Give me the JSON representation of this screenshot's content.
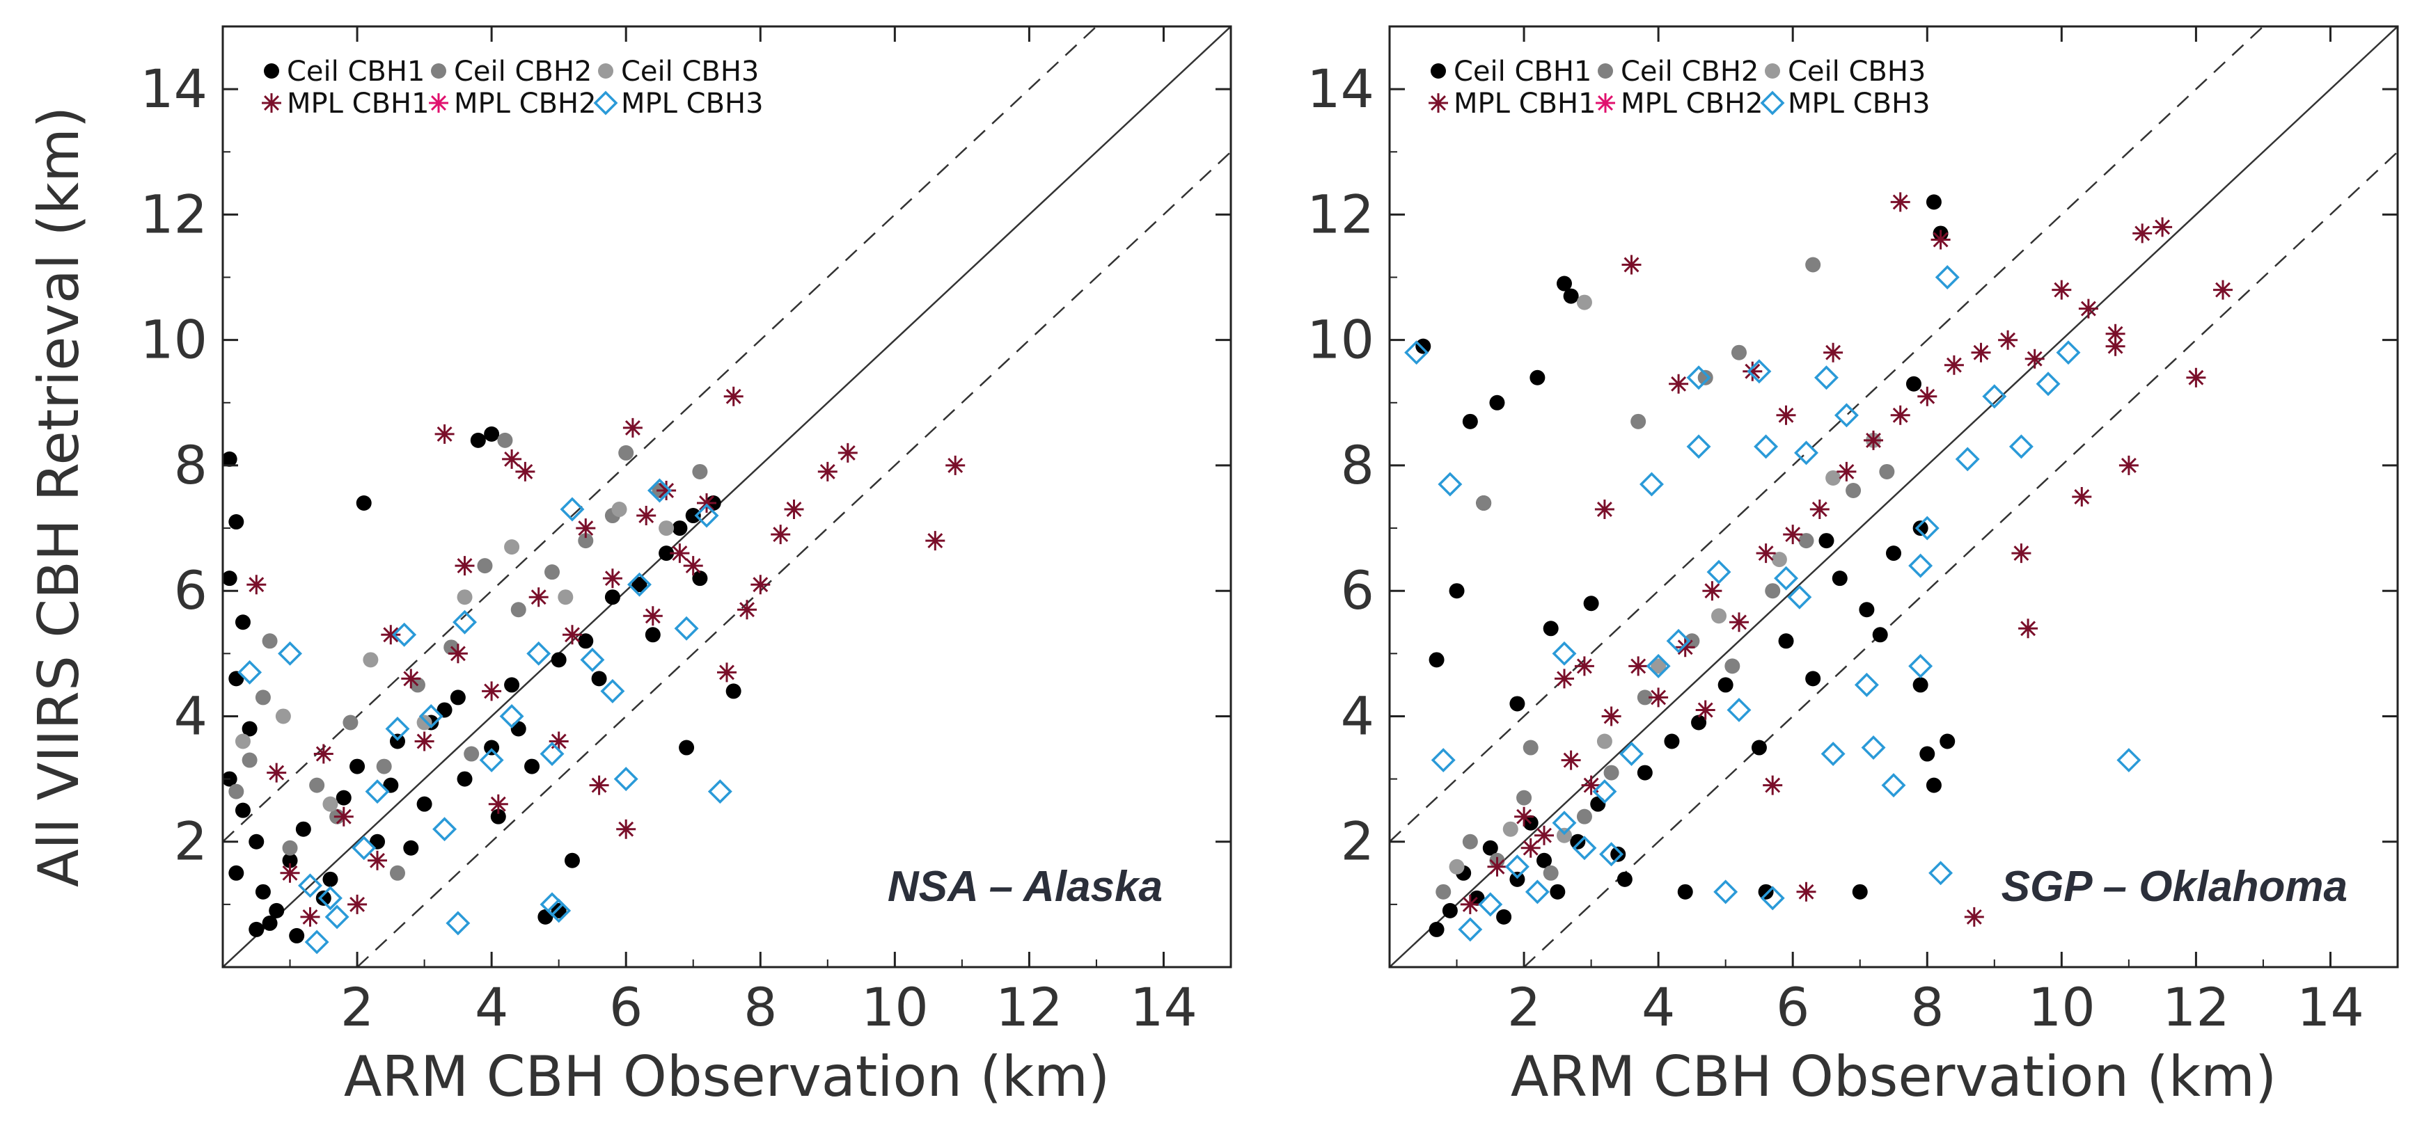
{
  "chart_data": [
    {
      "type": "scatter",
      "xlabel": "ARM CBH Observation (km)",
      "ylabel": "All VIIRS CBH Retrieval (km)",
      "xlim": [
        0,
        15
      ],
      "ylim": [
        0,
        15
      ],
      "xticks": [
        2,
        4,
        6,
        8,
        10,
        12,
        14
      ],
      "yticks": [
        2,
        4,
        6,
        8,
        10,
        12,
        14
      ],
      "annotation": "NSA – Alaska",
      "legend_position": "top-left",
      "reference_lines": {
        "one_to_one": "solid",
        "offset_km": 2,
        "offset_style": "dashed"
      },
      "colors": {
        "ceil_cbh1": "#000000",
        "ceil_cbh2": "#808080",
        "ceil_cbh3": "#9a9a9a",
        "mpl_cbh1": "#7a0f2a",
        "mpl_cbh2": "#e0116e",
        "mpl_cbh3": "#2a9ad8"
      },
      "legend": [
        {
          "label": "Ceil CBH1",
          "marker": "circle",
          "color": "#000000"
        },
        {
          "label": "Ceil CBH2",
          "marker": "circle",
          "color": "#808080"
        },
        {
          "label": "Ceil CBH3",
          "marker": "circle",
          "color": "#9a9a9a"
        },
        {
          "label": "MPL CBH1",
          "marker": "asterisk",
          "color": "#7a0f2a"
        },
        {
          "label": "MPL CBH2",
          "marker": "asterisk",
          "color": "#e0116e"
        },
        {
          "label": "MPL CBH3",
          "marker": "diamond",
          "color": "#2a9ad8"
        }
      ],
      "series": [
        {
          "name": "Ceil CBH1",
          "x": [
            0.1,
            0.2,
            0.1,
            0.3,
            0.2,
            0.4,
            0.1,
            0.3,
            0.5,
            0.2,
            0.6,
            0.8,
            1.0,
            1.2,
            1.5,
            1.8,
            2.0,
            2.3,
            2.6,
            3.0,
            3.3,
            3.6,
            4.0,
            4.3,
            4.6,
            5.0,
            5.4,
            5.8,
            6.2,
            6.6,
            7.0,
            7.3,
            7.6,
            3.8,
            4.0,
            2.1,
            4.8,
            5.0,
            5.2,
            6.9,
            0.5,
            0.7,
            1.1,
            1.6,
            2.5,
            2.8,
            3.1,
            3.5,
            4.1,
            4.4,
            5.6,
            6.4,
            6.8,
            7.1
          ],
          "y": [
            8.1,
            7.1,
            6.2,
            5.5,
            4.6,
            3.8,
            3.0,
            2.5,
            2.0,
            1.5,
            1.2,
            0.9,
            1.7,
            2.2,
            1.1,
            2.7,
            3.2,
            2.0,
            3.6,
            2.6,
            4.1,
            3.0,
            3.5,
            4.5,
            3.2,
            4.9,
            5.2,
            5.9,
            6.1,
            6.6,
            7.2,
            7.4,
            4.4,
            8.4,
            8.5,
            7.4,
            0.8,
            0.9,
            1.7,
            3.5,
            0.6,
            0.7,
            0.5,
            1.4,
            2.9,
            1.9,
            3.9,
            4.3,
            2.4,
            3.8,
            4.6,
            5.3,
            7.0,
            6.2
          ]
        },
        {
          "name": "Ceil CBH2",
          "x": [
            0.2,
            0.4,
            0.7,
            1.0,
            1.4,
            1.9,
            2.4,
            2.9,
            3.4,
            3.9,
            4.4,
            4.9,
            5.4,
            6.0,
            6.5,
            7.1,
            4.2,
            5.8,
            0.6,
            1.7,
            2.6,
            3.7
          ],
          "y": [
            2.8,
            3.3,
            5.2,
            1.9,
            2.9,
            3.9,
            3.2,
            4.5,
            5.1,
            6.4,
            5.7,
            6.3,
            6.8,
            8.2,
            7.6,
            7.9,
            8.4,
            7.2,
            4.3,
            2.4,
            1.5,
            3.4
          ]
        },
        {
          "name": "Ceil CBH3",
          "x": [
            0.3,
            0.9,
            1.6,
            2.2,
            3.0,
            3.6,
            4.3,
            5.1,
            5.9,
            6.6
          ],
          "y": [
            3.6,
            4.0,
            2.6,
            4.9,
            3.9,
            5.9,
            6.7,
            5.9,
            7.3,
            7.0
          ]
        },
        {
          "name": "MPL CBH1",
          "x": [
            0.5,
            1.0,
            1.5,
            2.0,
            2.5,
            3.0,
            3.3,
            3.6,
            4.0,
            4.3,
            4.7,
            5.0,
            5.4,
            5.8,
            6.1,
            6.4,
            6.8,
            7.2,
            7.6,
            8.0,
            8.3,
            9.0,
            9.3,
            10.6,
            10.9,
            6.0,
            6.6,
            7.5,
            4.1,
            5.6,
            0.8,
            1.3,
            1.8,
            2.3,
            2.8,
            3.5,
            4.5,
            5.2,
            6.3,
            7.0,
            7.8,
            8.5
          ],
          "y": [
            6.1,
            1.5,
            3.4,
            1.0,
            5.3,
            3.6,
            8.5,
            6.4,
            4.4,
            8.1,
            5.9,
            3.6,
            7.0,
            6.2,
            8.6,
            5.6,
            6.6,
            7.4,
            9.1,
            6.1,
            6.9,
            7.9,
            8.2,
            6.8,
            8.0,
            2.2,
            7.6,
            4.7,
            2.6,
            2.9,
            3.1,
            0.8,
            2.4,
            1.7,
            4.6,
            5.0,
            7.9,
            5.3,
            7.2,
            6.4,
            5.7,
            7.3
          ]
        },
        {
          "name": "MPL CBH3",
          "x": [
            1.0,
            1.3,
            1.4,
            1.7,
            2.1,
            2.6,
            2.7,
            3.1,
            3.3,
            3.6,
            4.0,
            4.3,
            4.7,
            4.9,
            5.0,
            5.2,
            5.5,
            5.8,
            6.0,
            6.2,
            6.5,
            6.9,
            7.2,
            7.4,
            3.5,
            4.9,
            2.3,
            1.6,
            0.4
          ],
          "y": [
            5.0,
            1.3,
            0.4,
            0.8,
            1.9,
            3.8,
            5.3,
            4.0,
            2.2,
            5.5,
            3.3,
            4.0,
            5.0,
            3.4,
            0.9,
            7.3,
            4.9,
            4.4,
            3.0,
            6.1,
            7.6,
            5.4,
            7.2,
            2.8,
            0.7,
            1.0,
            2.8,
            1.1,
            4.7
          ]
        }
      ]
    },
    {
      "type": "scatter",
      "xlabel": "ARM CBH Observation (km)",
      "ylabel": "",
      "xlim": [
        0,
        15
      ],
      "ylim": [
        0,
        15
      ],
      "xticks": [
        2,
        4,
        6,
        8,
        10,
        12,
        14
      ],
      "yticks": [
        2,
        4,
        6,
        8,
        10,
        12,
        14
      ],
      "annotation": "SGP – Oklahoma",
      "legend_position": "top-left",
      "reference_lines": {
        "one_to_one": "solid",
        "offset_km": 2,
        "offset_style": "dashed"
      },
      "colors": {
        "ceil_cbh1": "#000000",
        "ceil_cbh2": "#808080",
        "ceil_cbh3": "#9a9a9a",
        "mpl_cbh1": "#7a0f2a",
        "mpl_cbh2": "#e0116e",
        "mpl_cbh3": "#2a9ad8"
      },
      "legend": [
        {
          "label": "Ceil CBH1",
          "marker": "circle",
          "color": "#000000"
        },
        {
          "label": "Ceil CBH2",
          "marker": "circle",
          "color": "#808080"
        },
        {
          "label": "Ceil CBH3",
          "marker": "circle",
          "color": "#9a9a9a"
        },
        {
          "label": "MPL CBH1",
          "marker": "asterisk",
          "color": "#7a0f2a"
        },
        {
          "label": "MPL CBH2",
          "marker": "asterisk",
          "color": "#e0116e"
        },
        {
          "label": "MPL CBH3",
          "marker": "diamond",
          "color": "#2a9ad8"
        }
      ],
      "series": [
        {
          "name": "Ceil CBH1",
          "x": [
            0.5,
            0.7,
            0.9,
            1.1,
            1.3,
            1.5,
            1.7,
            1.9,
            2.1,
            2.3,
            2.5,
            2.8,
            3.1,
            3.4,
            3.8,
            4.2,
            4.6,
            5.0,
            5.5,
            5.9,
            6.3,
            6.7,
            7.1,
            7.5,
            7.9,
            8.1,
            8.2,
            7.8,
            7.9,
            0.7,
            1.0,
            1.2,
            1.4,
            2.2,
            2.6,
            2.7,
            1.6,
            1.9,
            2.4,
            3.0,
            3.5,
            4.4,
            5.6,
            7.0,
            8.0,
            8.1,
            8.3,
            6.5,
            7.3
          ],
          "y": [
            9.9,
            0.6,
            0.9,
            1.5,
            1.1,
            1.9,
            0.8,
            1.4,
            2.3,
            1.7,
            1.2,
            2.0,
            2.6,
            1.8,
            3.1,
            3.6,
            3.9,
            4.5,
            3.5,
            5.2,
            4.6,
            6.2,
            5.7,
            6.6,
            7.0,
            12.2,
            11.7,
            9.3,
            4.5,
            4.9,
            6.0,
            8.7,
            7.4,
            9.4,
            10.9,
            10.7,
            9.0,
            4.2,
            5.4,
            5.8,
            1.4,
            1.2,
            1.2,
            1.2,
            3.4,
            2.9,
            3.6,
            6.8,
            5.3
          ]
        },
        {
          "name": "Ceil CBH2",
          "x": [
            0.8,
            1.2,
            1.6,
            2.0,
            2.4,
            2.9,
            3.3,
            3.8,
            4.5,
            5.1,
            5.7,
            6.2,
            6.9,
            7.4,
            3.7,
            4.7,
            5.2,
            6.3,
            2.1,
            1.4
          ],
          "y": [
            1.2,
            2.0,
            1.7,
            2.7,
            1.5,
            2.4,
            3.1,
            4.3,
            5.2,
            4.8,
            6.0,
            6.8,
            7.6,
            7.9,
            8.7,
            9.4,
            9.8,
            11.2,
            3.5,
            7.4
          ]
        },
        {
          "name": "Ceil CBH3",
          "x": [
            1.0,
            1.8,
            2.6,
            3.2,
            4.0,
            4.9,
            5.8,
            6.6,
            7.2,
            2.9
          ],
          "y": [
            1.6,
            2.2,
            2.1,
            3.6,
            4.8,
            5.6,
            6.5,
            7.8,
            8.4,
            10.6
          ]
        },
        {
          "name": "MPL CBH1",
          "x": [
            1.2,
            1.6,
            2.0,
            2.3,
            2.7,
            3.0,
            3.3,
            3.7,
            4.0,
            4.4,
            4.8,
            5.2,
            5.6,
            6.0,
            6.4,
            6.8,
            7.2,
            7.6,
            8.0,
            8.4,
            8.8,
            9.2,
            9.6,
            10.0,
            10.4,
            10.8,
            11.2,
            11.5,
            12.0,
            12.4,
            3.6,
            4.3,
            5.4,
            5.9,
            6.6,
            7.6,
            8.2,
            9.4,
            10.3,
            11.0,
            2.6,
            3.2,
            4.7,
            2.1,
            2.9,
            6.2,
            8.7,
            9.5,
            5.7,
            10.8
          ],
          "y": [
            1.0,
            1.6,
            2.4,
            2.1,
            3.3,
            2.9,
            4.0,
            4.8,
            4.3,
            5.1,
            6.0,
            5.5,
            6.6,
            6.9,
            7.3,
            7.9,
            8.4,
            8.8,
            9.1,
            9.6,
            9.8,
            10.0,
            9.7,
            10.8,
            10.5,
            10.1,
            11.7,
            11.8,
            9.4,
            10.8,
            11.2,
            9.3,
            9.5,
            8.8,
            9.8,
            12.2,
            11.6,
            6.6,
            7.5,
            8.0,
            4.6,
            7.3,
            4.1,
            1.9,
            4.8,
            1.2,
            0.8,
            5.4,
            2.9,
            9.9
          ]
        },
        {
          "name": "MPL CBH3",
          "x": [
            0.4,
            0.9,
            1.2,
            1.5,
            1.9,
            2.2,
            2.6,
            2.9,
            3.2,
            3.6,
            4.0,
            4.3,
            4.6,
            4.9,
            5.2,
            5.5,
            5.9,
            6.2,
            6.5,
            6.8,
            7.2,
            7.5,
            7.9,
            8.3,
            8.6,
            9.0,
            9.4,
            9.8,
            10.1,
            11.0,
            0.8,
            2.6,
            3.9,
            4.6,
            5.0,
            5.7,
            6.1,
            6.6,
            7.1,
            7.9,
            8.2,
            3.3,
            5.6,
            8.0
          ],
          "y": [
            9.8,
            7.7,
            0.6,
            1.0,
            1.6,
            1.2,
            2.3,
            1.9,
            2.8,
            3.4,
            4.8,
            5.2,
            9.4,
            6.3,
            4.1,
            9.5,
            6.2,
            8.2,
            9.4,
            8.8,
            3.5,
            2.9,
            4.8,
            11.0,
            8.1,
            9.1,
            8.3,
            9.3,
            9.8,
            3.3,
            3.3,
            5.0,
            7.7,
            8.3,
            1.2,
            1.1,
            5.9,
            3.4,
            4.5,
            6.4,
            1.5,
            1.8,
            8.3,
            7.0
          ]
        }
      ]
    }
  ]
}
